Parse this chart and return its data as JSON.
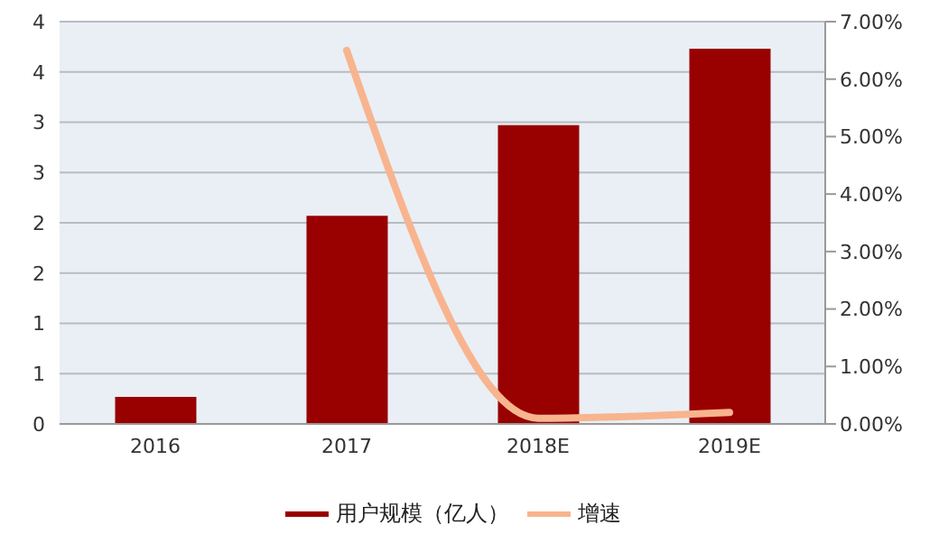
{
  "chart_data": {
    "type": "bar",
    "categories": [
      "2016",
      "2017",
      "2018E",
      "2019E"
    ],
    "series": [
      {
        "name": "用户规模（亿人）",
        "color": "#990000",
        "values": [
          0.27,
          2.07,
          2.97,
          3.73
        ]
      },
      {
        "name": "增速",
        "type": "line",
        "axis": "y2",
        "color": "#f8b48e",
        "values": [
          null,
          6.5,
          0.1,
          0.2
        ]
      }
    ],
    "ylim": [
      0,
      4
    ],
    "yticks": [
      0,
      {
        "value": 0.5,
        "label": "1"
      },
      1,
      {
        "value": 1.5,
        "label": "2"
      },
      2,
      {
        "value": 2.5,
        "label": "3"
      },
      3,
      {
        "value": 3.5,
        "label": "4"
      },
      4
    ],
    "y2lim": [
      0,
      7
    ],
    "y2ticks": [
      {
        "value": 0,
        "label": "0.00%"
      },
      {
        "value": 1,
        "label": "1.00%"
      },
      {
        "value": 2,
        "label": "2.00%"
      },
      {
        "value": 3,
        "label": "3.00%"
      },
      {
        "value": 4,
        "label": "4.00%"
      },
      {
        "value": 5,
        "label": "5.00%"
      },
      {
        "value": 6,
        "label": "6.00%"
      },
      {
        "value": 7,
        "label": "7.00%"
      }
    ],
    "grid": "y",
    "legend": "bottom",
    "marker": "none"
  }
}
